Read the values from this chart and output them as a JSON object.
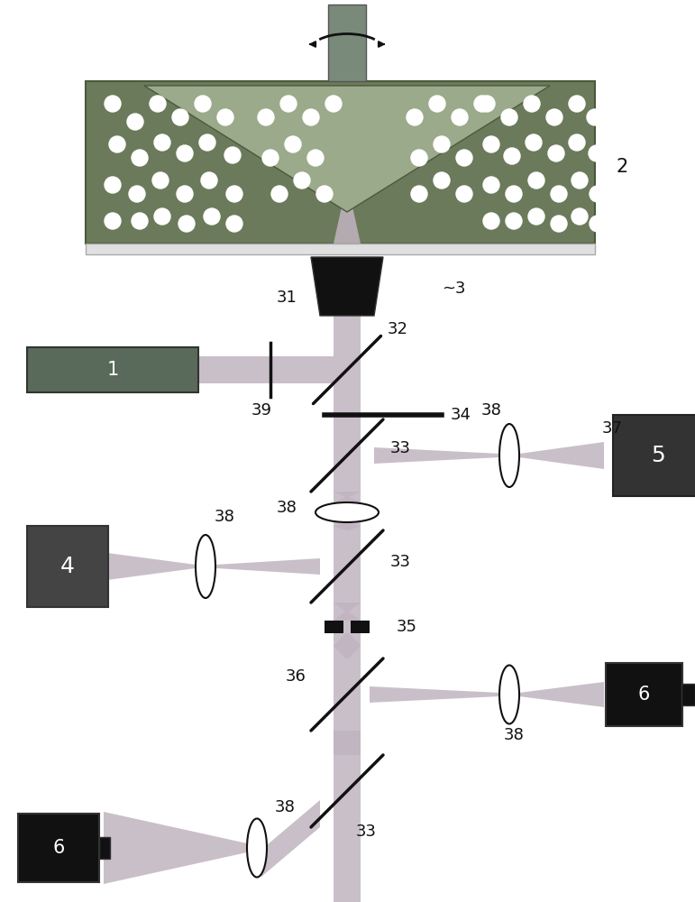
{
  "bg": "#ffffff",
  "beam_color": "#c0b4c0",
  "container_fill": "#6b7a5a",
  "container_edge": "#4a5a3a",
  "cone_fill": "#9aaa8a",
  "slide_fill": "#e0e0e0",
  "slide_edge": "#aaaaaa",
  "obj_fill": "#111111",
  "laser_fill": "#5a6a5a",
  "laser_edge": "#333333",
  "mirror_color": "#111111",
  "det5_fill": "#333333",
  "det4_fill": "#444444",
  "det6_fill": "#111111",
  "lens_fill": "#ffffff",
  "lens_edge": "#222222",
  "shaft_fill": "#7a8a7a",
  "text_color": "#111111",
  "white": "#ffffff",
  "black": "#111111",
  "pinhole_fill": "#111111",
  "dot_color": "#ffffff"
}
